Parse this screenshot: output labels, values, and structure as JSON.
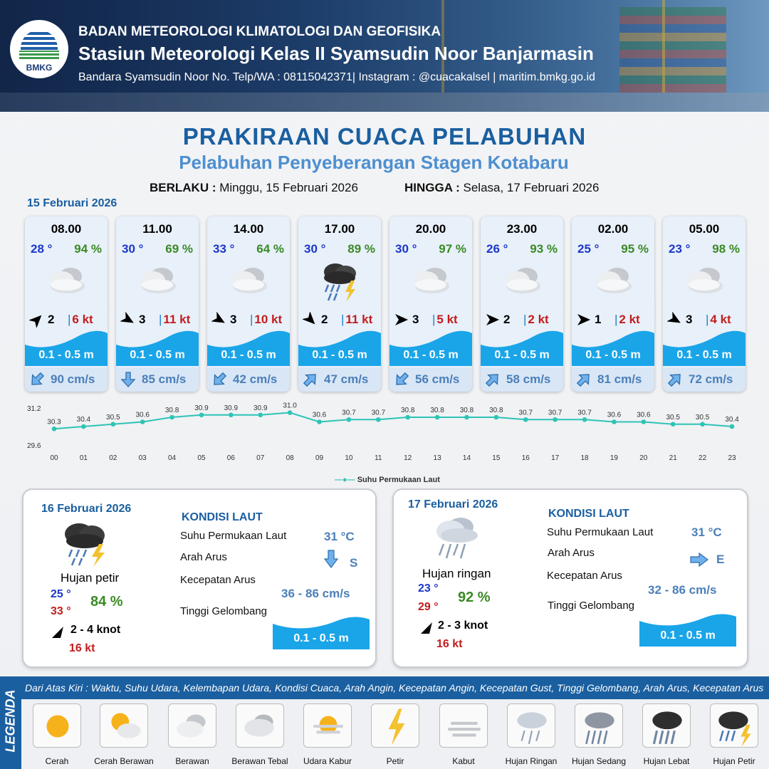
{
  "header": {
    "line1": "BADAN METEOROLOGI KLIMATOLOGI DAN GEOFISIKA",
    "line2": "Stasiun Meteorologi Kelas II Syamsudin Noor Banjarmasin",
    "line3": "Bandara Syamsudin Noor No. Telp/WA : 08115042371| Instagram : @cuacakalsel | maritim.bmkg.go.id",
    "logo_text": "BMKG"
  },
  "title": "PRAKIRAAN CUACA PELABUHAN",
  "subtitle": "Pelabuhan Penyeberangan Stagen Kotabaru",
  "validity": {
    "from_label": "BERLAKU :",
    "from": "Minggu, 15 Februari 2026",
    "to_label": "HINGGA :",
    "to": "Selasa, 17 Februari 2026"
  },
  "day1": {
    "date": "15 Februari 2026"
  },
  "cards": [
    {
      "time": "08.00",
      "temp": "28 °",
      "rh": "94 %",
      "icon": "berawan-tebal-icon",
      "wind": "2",
      "gust": "6 kt",
      "wave": "0.1 - 0.5 m",
      "current": "90 cm/s",
      "wind_dir_deg": 45,
      "cur_dir_deg": 225
    },
    {
      "time": "11.00",
      "temp": "30 °",
      "rh": "69 %",
      "icon": "berawan-tebal-icon",
      "wind": "3",
      "gust": "11 kt",
      "wave": "0.1 - 0.5 m",
      "current": "85 cm/s",
      "wind_dir_deg": 120,
      "cur_dir_deg": 180
    },
    {
      "time": "14.00",
      "temp": "33 °",
      "rh": "64 %",
      "icon": "berawan-tebal-icon",
      "wind": "3",
      "gust": "10 kt",
      "wave": "0.1 - 0.5 m",
      "current": "42 cm/s",
      "wind_dir_deg": 120,
      "cur_dir_deg": 225
    },
    {
      "time": "17.00",
      "temp": "30 °",
      "rh": "89 %",
      "icon": "hujan-petir-icon",
      "wind": "2",
      "gust": "11 kt",
      "wave": "0.1 - 0.5 m",
      "current": "47 cm/s",
      "wind_dir_deg": 135,
      "cur_dir_deg": 45
    },
    {
      "time": "20.00",
      "temp": "30 °",
      "rh": "97 %",
      "icon": "berawan-tebal-icon",
      "wind": "3",
      "gust": "5 kt",
      "wave": "0.1 - 0.5 m",
      "current": "56 cm/s",
      "wind_dir_deg": 90,
      "cur_dir_deg": 225
    },
    {
      "time": "23.00",
      "temp": "26 °",
      "rh": "93 %",
      "icon": "berawan-tebal-icon",
      "wind": "2",
      "gust": "2 kt",
      "wave": "0.1 - 0.5 m",
      "current": "58 cm/s",
      "wind_dir_deg": 90,
      "cur_dir_deg": 45
    },
    {
      "time": "02.00",
      "temp": "25 °",
      "rh": "95 %",
      "icon": "berawan-tebal-icon",
      "wind": "1",
      "gust": "2 kt",
      "wave": "0.1 - 0.5 m",
      "current": "81 cm/s",
      "wind_dir_deg": 90,
      "cur_dir_deg": 45
    },
    {
      "time": "05.00",
      "temp": "23 °",
      "rh": "98 %",
      "icon": "berawan-tebal-icon",
      "wind": "3",
      "gust": "4 kt",
      "wave": "0.1 - 0.5 m",
      "current": "72 cm/s",
      "wind_dir_deg": 120,
      "cur_dir_deg": 45
    }
  ],
  "chart_data": {
    "type": "line",
    "x": [
      "00",
      "01",
      "02",
      "03",
      "04",
      "05",
      "06",
      "07",
      "08",
      "09",
      "10",
      "11",
      "12",
      "13",
      "14",
      "15",
      "16",
      "17",
      "18",
      "19",
      "20",
      "21",
      "22",
      "23"
    ],
    "series": [
      {
        "name": "Suhu Permukaan Laut",
        "values": [
          30.3,
          30.4,
          30.5,
          30.6,
          30.8,
          30.9,
          30.9,
          30.9,
          31.0,
          30.6,
          30.7,
          30.7,
          30.8,
          30.8,
          30.8,
          30.8,
          30.7,
          30.7,
          30.7,
          30.6,
          30.6,
          30.5,
          30.5,
          30.4
        ],
        "color": "#2ec4b6"
      }
    ],
    "ylim": [
      29.6,
      31.2
    ],
    "yticks": [
      "31.2",
      "29.6"
    ],
    "legend": "bottom",
    "grid": false
  },
  "day2": {
    "date": "16 Februari 2026",
    "kondisi": "KONDISI LAUT",
    "cond": "Hujan petir",
    "tmin": "25 °",
    "tmax": "33 °",
    "rh": "84 %",
    "wind": "2  - 4 knot",
    "gust": "16 kt",
    "l_sst": "Suhu Permukaan Laut",
    "v_sst": "31 °C",
    "l_dir": "Arah Arus",
    "v_dir": "S",
    "l_spd": "Kecepatan Arus",
    "v_spd": "36 - 86 cm/s",
    "l_wave": "Tinggi Gelombang",
    "v_wave": "0.1 - 0.5 m"
  },
  "day3": {
    "date": "17 Februari 2026",
    "kondisi": "KONDISI LAUT",
    "cond": "Hujan ringan",
    "tmin": "23 °",
    "tmax": "29 °",
    "rh": "92 %",
    "wind": "2  - 3 knot",
    "gust": "16 kt",
    "l_sst": "Suhu Permukaan Laut",
    "v_sst": "31 °C",
    "l_dir": "Arah Arus",
    "v_dir": "E",
    "l_spd": "Kecepatan Arus",
    "v_spd": "32 - 86 cm/s",
    "l_wave": "Tinggi Gelombang",
    "v_wave": "0.1 - 0.5 m"
  },
  "legend": {
    "side": "LEGENDA",
    "desc": "Dari Atas Kiri : Waktu, Suhu Udara, Kelembapan Udara, Kondisi Cuaca, Arah Angin, Kecepatan Angin, Kecepatan Gust, Tinggi Gelombang, Arah Arus, Kecepatan Arus",
    "items": [
      "Cerah",
      "Cerah Berawan",
      "Berawan",
      "Berawan Tebal",
      "Udara Kabur",
      "Petir",
      "Kabut",
      "Hujan Ringan",
      "Hujan Sedang",
      "Hujan Lebat",
      "Hujan Petir"
    ]
  },
  "colors": {
    "primary": "#1a5fa0",
    "wave": "#1aa5e8",
    "temp": "#1c37c8",
    "rh": "#3a8a24",
    "gust": "#c21d1d"
  }
}
